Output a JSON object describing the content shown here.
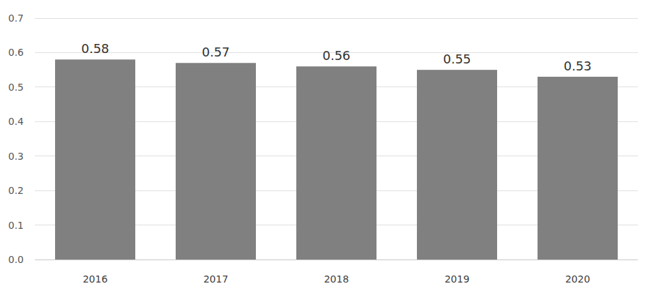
{
  "chart_data": {
    "type": "bar",
    "categories": [
      "2016",
      "2017",
      "2018",
      "2019",
      "2020"
    ],
    "values": [
      0.58,
      0.57,
      0.56,
      0.55,
      0.53
    ],
    "color": "#808080",
    "ylim": [
      0,
      0.7
    ],
    "yticks": [
      {
        "value": 0,
        "label": "0.0"
      },
      0.1,
      0.2,
      0.3,
      0.4,
      0.5,
      0.6,
      0.7
    ],
    "grid": true,
    "data_labels": true
  }
}
